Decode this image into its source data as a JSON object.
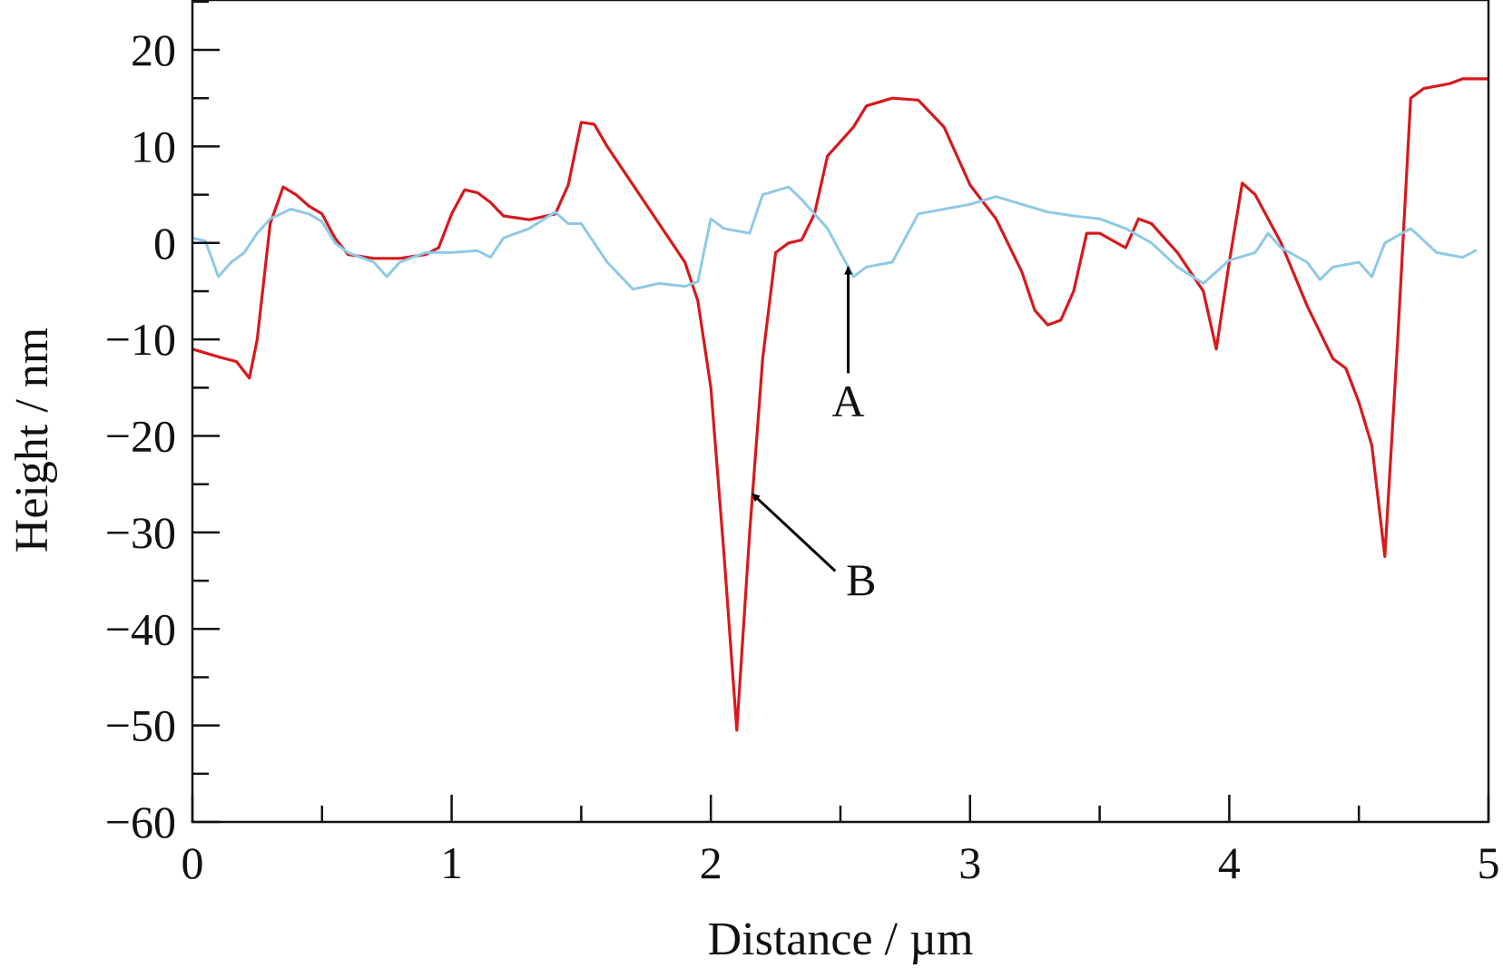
{
  "chart_data": {
    "type": "line",
    "title": "",
    "xlabel": "Distance / µm",
    "ylabel": "Height / nm",
    "xlim": [
      0,
      5
    ],
    "ylim": [
      -60,
      25
    ],
    "xticks": [
      0,
      1,
      2,
      3,
      4,
      5
    ],
    "yticks": [
      -60,
      -50,
      -40,
      -30,
      -20,
      -10,
      0,
      10,
      20
    ],
    "xtick_labels": [
      "0",
      "1",
      "2",
      "3",
      "4",
      "5"
    ],
    "ytick_labels": [
      "−60",
      "−50",
      "−40",
      "−30",
      "−20",
      "−10",
      "0",
      "10",
      "20"
    ],
    "x_minor_step": 0.5,
    "y_minor_step": 5,
    "grid": false,
    "legend": "none",
    "series": [
      {
        "color": "#d7191c",
        "points": [
          [
            0.0,
            -11.0
          ],
          [
            0.1,
            -11.8
          ],
          [
            0.17,
            -12.3
          ],
          [
            0.22,
            -14.0
          ],
          [
            0.25,
            -10.0
          ],
          [
            0.3,
            2.0
          ],
          [
            0.35,
            5.8
          ],
          [
            0.4,
            5.0
          ],
          [
            0.45,
            3.8
          ],
          [
            0.5,
            3.0
          ],
          [
            0.55,
            0.5
          ],
          [
            0.6,
            -1.2
          ],
          [
            0.7,
            -1.6
          ],
          [
            0.8,
            -1.6
          ],
          [
            0.9,
            -1.2
          ],
          [
            0.95,
            -0.5
          ],
          [
            1.0,
            3.0
          ],
          [
            1.05,
            5.5
          ],
          [
            1.1,
            5.2
          ],
          [
            1.15,
            4.2
          ],
          [
            1.2,
            2.8
          ],
          [
            1.3,
            2.4
          ],
          [
            1.4,
            3.0
          ],
          [
            1.45,
            6.0
          ],
          [
            1.5,
            12.5
          ],
          [
            1.55,
            12.3
          ],
          [
            1.6,
            10.0
          ],
          [
            1.7,
            6.0
          ],
          [
            1.8,
            2.0
          ],
          [
            1.9,
            -2.0
          ],
          [
            1.95,
            -6.0
          ],
          [
            2.0,
            -15.0
          ],
          [
            2.05,
            -32.0
          ],
          [
            2.1,
            -50.5
          ],
          [
            2.15,
            -30.0
          ],
          [
            2.2,
            -12.0
          ],
          [
            2.25,
            -1.0
          ],
          [
            2.3,
            0.0
          ],
          [
            2.35,
            0.3
          ],
          [
            2.4,
            3.0
          ],
          [
            2.45,
            9.0
          ],
          [
            2.5,
            10.5
          ],
          [
            2.55,
            12.0
          ],
          [
            2.6,
            14.2
          ],
          [
            2.7,
            15.0
          ],
          [
            2.8,
            14.8
          ],
          [
            2.9,
            12.0
          ],
          [
            3.0,
            6.0
          ],
          [
            3.1,
            2.5
          ],
          [
            3.2,
            -3.0
          ],
          [
            3.25,
            -7.0
          ],
          [
            3.3,
            -8.5
          ],
          [
            3.35,
            -8.0
          ],
          [
            3.4,
            -5.0
          ],
          [
            3.45,
            1.0
          ],
          [
            3.5,
            1.0
          ],
          [
            3.6,
            -0.5
          ],
          [
            3.65,
            2.5
          ],
          [
            3.7,
            2.0
          ],
          [
            3.8,
            -1.0
          ],
          [
            3.9,
            -5.0
          ],
          [
            3.95,
            -11.0
          ],
          [
            4.0,
            -2.0
          ],
          [
            4.05,
            6.2
          ],
          [
            4.1,
            5.0
          ],
          [
            4.2,
            0.0
          ],
          [
            4.3,
            -6.5
          ],
          [
            4.4,
            -12.0
          ],
          [
            4.45,
            -13.0
          ],
          [
            4.5,
            -16.5
          ],
          [
            4.55,
            -21.0
          ],
          [
            4.6,
            -32.5
          ],
          [
            4.65,
            -10.0
          ],
          [
            4.7,
            15.0
          ],
          [
            4.75,
            16.0
          ],
          [
            4.85,
            16.5
          ],
          [
            4.9,
            17.0
          ],
          [
            5.0,
            17.0
          ]
        ]
      },
      {
        "color": "#8ecae6",
        "points": [
          [
            0.0,
            0.5
          ],
          [
            0.05,
            0.2
          ],
          [
            0.1,
            -3.5
          ],
          [
            0.15,
            -2.0
          ],
          [
            0.2,
            -1.0
          ],
          [
            0.25,
            1.0
          ],
          [
            0.3,
            2.5
          ],
          [
            0.38,
            3.5
          ],
          [
            0.45,
            3.0
          ],
          [
            0.5,
            2.2
          ],
          [
            0.55,
            0.0
          ],
          [
            0.6,
            -1.0
          ],
          [
            0.7,
            -2.0
          ],
          [
            0.75,
            -3.5
          ],
          [
            0.8,
            -2.0
          ],
          [
            0.9,
            -1.0
          ],
          [
            1.0,
            -1.0
          ],
          [
            1.1,
            -0.8
          ],
          [
            1.15,
            -1.5
          ],
          [
            1.2,
            0.5
          ],
          [
            1.3,
            1.5
          ],
          [
            1.4,
            3.2
          ],
          [
            1.45,
            2.0
          ],
          [
            1.5,
            2.0
          ],
          [
            1.6,
            -2.0
          ],
          [
            1.7,
            -4.8
          ],
          [
            1.8,
            -4.2
          ],
          [
            1.9,
            -4.5
          ],
          [
            1.95,
            -4.0
          ],
          [
            2.0,
            2.5
          ],
          [
            2.05,
            1.5
          ],
          [
            2.15,
            1.0
          ],
          [
            2.2,
            5.0
          ],
          [
            2.3,
            5.8
          ],
          [
            2.35,
            4.5
          ],
          [
            2.4,
            3.0
          ],
          [
            2.45,
            1.5
          ],
          [
            2.5,
            -1.0
          ],
          [
            2.55,
            -3.5
          ],
          [
            2.6,
            -2.5
          ],
          [
            2.7,
            -2.0
          ],
          [
            2.8,
            3.0
          ],
          [
            2.9,
            3.5
          ],
          [
            3.0,
            4.0
          ],
          [
            3.1,
            4.8
          ],
          [
            3.2,
            4.0
          ],
          [
            3.3,
            3.2
          ],
          [
            3.4,
            2.8
          ],
          [
            3.5,
            2.5
          ],
          [
            3.6,
            1.5
          ],
          [
            3.7,
            0.0
          ],
          [
            3.8,
            -2.5
          ],
          [
            3.9,
            -4.2
          ],
          [
            4.0,
            -1.8
          ],
          [
            4.1,
            -1.0
          ],
          [
            4.15,
            1.0
          ],
          [
            4.2,
            -0.5
          ],
          [
            4.3,
            -2.0
          ],
          [
            4.35,
            -3.8
          ],
          [
            4.4,
            -2.5
          ],
          [
            4.5,
            -2.0
          ],
          [
            4.55,
            -3.5
          ],
          [
            4.6,
            0.0
          ],
          [
            4.7,
            1.5
          ],
          [
            4.8,
            -1.0
          ],
          [
            4.9,
            -1.5
          ],
          [
            4.95,
            -0.8
          ]
        ]
      }
    ],
    "annotations": [
      {
        "label": "A",
        "text_at": [
          2.53,
          -18.0
        ],
        "arrow_from": [
          2.53,
          -13.5
        ],
        "arrow_to": [
          2.53,
          -2.5
        ]
      },
      {
        "label": "B",
        "text_at": [
          2.58,
          -36.5
        ],
        "arrow_from": [
          2.48,
          -34.0
        ],
        "arrow_to": [
          2.16,
          -26.0
        ]
      }
    ]
  }
}
